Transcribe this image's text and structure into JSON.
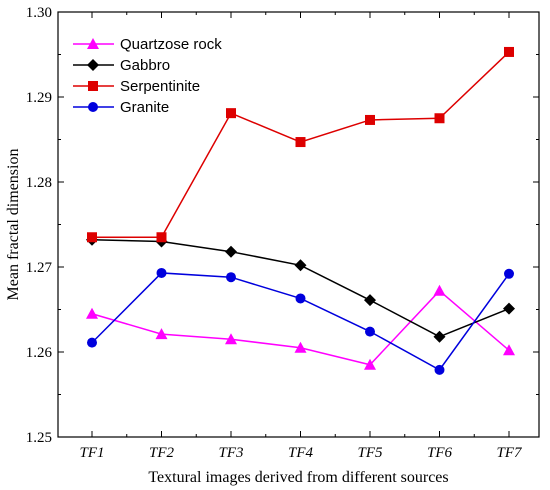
{
  "chart_data": {
    "type": "line",
    "x": [
      "TF1",
      "TF2",
      "TF3",
      "TF4",
      "TF5",
      "TF6",
      "TF7"
    ],
    "xlabel": "Textural images derived from different sources",
    "ylabel": "Mean fractal dimension",
    "ylim": [
      1.25,
      1.3
    ],
    "yticks": [
      "1.25",
      "1.26",
      "1.27",
      "1.28",
      "1.29",
      "1.30"
    ],
    "grid": false,
    "legend_position": "top-left",
    "series": [
      {
        "name": "Quartzose rock",
        "color": "#ff00ff",
        "marker": "triangle",
        "values": [
          1.2645,
          1.2621,
          1.2615,
          1.2605,
          1.2585,
          1.2672,
          1.2602
        ]
      },
      {
        "name": "Gabbro",
        "color": "#000000",
        "marker": "diamond",
        "values": [
          1.2732,
          1.273,
          1.2718,
          1.2702,
          1.2661,
          1.2618,
          1.2651
        ]
      },
      {
        "name": "Serpentinite",
        "color": "#dd0000",
        "marker": "square",
        "values": [
          1.2735,
          1.2735,
          1.2881,
          1.2847,
          1.2873,
          1.2875,
          1.2953
        ]
      },
      {
        "name": "Granite",
        "color": "#0000dd",
        "marker": "circle",
        "values": [
          1.2611,
          1.2693,
          1.2688,
          1.2663,
          1.2624,
          1.2579,
          1.2692
        ]
      }
    ]
  }
}
